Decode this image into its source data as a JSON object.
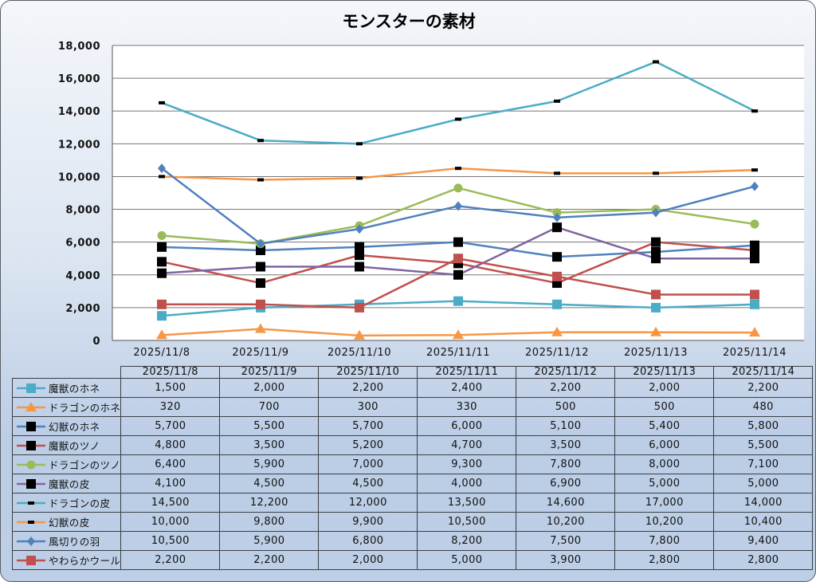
{
  "chart_data": {
    "type": "line",
    "title": "モンスターの素材",
    "xlabel": "",
    "ylabel": "",
    "ylim": [
      0,
      18000
    ],
    "yticks": [
      "0",
      "2,000",
      "4,000",
      "6,000",
      "8,000",
      "10,000",
      "12,000",
      "14,000",
      "16,000",
      "18,000"
    ],
    "ytick_values": [
      0,
      2000,
      4000,
      6000,
      8000,
      10000,
      12000,
      14000,
      16000,
      18000
    ],
    "grid": true,
    "legend": "data-table",
    "categories": [
      "2025/11/8",
      "2025/11/9",
      "2025/11/10",
      "2025/11/11",
      "2025/11/12",
      "2025/11/13",
      "2025/11/14"
    ],
    "series": [
      {
        "name": "魔獣のホネ",
        "color": "#4bacc6",
        "marker": "square",
        "marker_color": "#4bacc6",
        "values": [
          1500,
          2000,
          2200,
          2400,
          2200,
          2000,
          2200
        ],
        "labels": [
          "1,500",
          "2,000",
          "2,200",
          "2,400",
          "2,200",
          "2,000",
          "2,200"
        ]
      },
      {
        "name": "ドラゴンのホネ",
        "color": "#f79646",
        "marker": "triangle",
        "marker_color": "#f79646",
        "values": [
          320,
          700,
          300,
          330,
          500,
          500,
          480
        ],
        "labels": [
          "320",
          "700",
          "300",
          "330",
          "500",
          "500",
          "480"
        ]
      },
      {
        "name": "幻獣のホネ",
        "color": "#4f81bd",
        "marker": "square",
        "marker_color": "#000000",
        "values": [
          5700,
          5500,
          5700,
          6000,
          5100,
          5400,
          5800
        ],
        "labels": [
          "5,700",
          "5,500",
          "5,700",
          "6,000",
          "5,100",
          "5,400",
          "5,800"
        ]
      },
      {
        "name": "魔獣のツノ",
        "color": "#c0504d",
        "marker": "square",
        "marker_color": "#000000",
        "values": [
          4800,
          3500,
          5200,
          4700,
          3500,
          6000,
          5500
        ],
        "labels": [
          "4,800",
          "3,500",
          "5,200",
          "4,700",
          "3,500",
          "6,000",
          "5,500"
        ]
      },
      {
        "name": "ドラゴンのツノ",
        "color": "#9bbb59",
        "marker": "circle",
        "marker_color": "#9bbb59",
        "values": [
          6400,
          5900,
          7000,
          9300,
          7800,
          8000,
          7100
        ],
        "labels": [
          "6,400",
          "5,900",
          "7,000",
          "9,300",
          "7,800",
          "8,000",
          "7,100"
        ]
      },
      {
        "name": "魔獣の皮",
        "color": "#8064a2",
        "marker": "square",
        "marker_color": "#000000",
        "values": [
          4100,
          4500,
          4500,
          4000,
          6900,
          5000,
          5000
        ],
        "labels": [
          "4,100",
          "4,500",
          "4,500",
          "4,000",
          "6,900",
          "5,000",
          "5,000"
        ]
      },
      {
        "name": "ドラゴンの皮",
        "color": "#4bacc6",
        "marker": "dash",
        "marker_color": "#000000",
        "values": [
          14500,
          12200,
          12000,
          13500,
          14600,
          17000,
          14000
        ],
        "labels": [
          "14,500",
          "12,200",
          "12,000",
          "13,500",
          "14,600",
          "17,000",
          "14,000"
        ]
      },
      {
        "name": "幻獣の皮",
        "color": "#f79646",
        "marker": "dash",
        "marker_color": "#000000",
        "values": [
          10000,
          9800,
          9900,
          10500,
          10200,
          10200,
          10400
        ],
        "labels": [
          "10,000",
          "9,800",
          "9,900",
          "10,500",
          "10,200",
          "10,200",
          "10,400"
        ]
      },
      {
        "name": "風切りの羽",
        "color": "#4f81bd",
        "marker": "diamond",
        "marker_color": "#4f81bd",
        "values": [
          10500,
          5900,
          6800,
          8200,
          7500,
          7800,
          9400
        ],
        "labels": [
          "10,500",
          "5,900",
          "6,800",
          "8,200",
          "7,500",
          "7,800",
          "9,400"
        ]
      },
      {
        "name": "やわらかウール",
        "color": "#c0504d",
        "marker": "square",
        "marker_color": "#c0504d",
        "values": [
          2200,
          2200,
          2000,
          5000,
          3900,
          2800,
          2800
        ],
        "labels": [
          "2,200",
          "2,200",
          "2,000",
          "5,000",
          "3,900",
          "2,800",
          "2,800"
        ]
      }
    ]
  }
}
